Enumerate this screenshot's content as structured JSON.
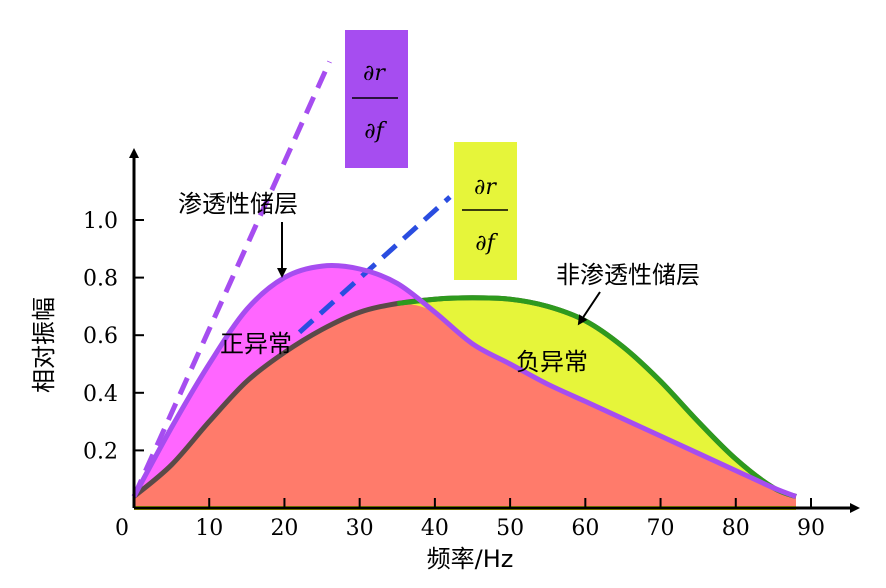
{
  "chart_data": {
    "type": "area",
    "xlabel": "频率/Hz",
    "ylabel": "相对振幅",
    "xlim": [
      0,
      90
    ],
    "ylim": [
      0,
      1.2
    ],
    "x_ticks": [
      "0",
      "10",
      "20",
      "30",
      "40",
      "50",
      "60",
      "70",
      "80",
      "90"
    ],
    "y_ticks": [
      "0.2",
      "0.4",
      "0.6",
      "0.8",
      "1.0"
    ],
    "series": [
      {
        "name": "渗透性储层",
        "color": "#a64df0",
        "fill": "#ff66ff",
        "x": [
          0,
          5,
          10,
          15,
          20,
          25,
          30,
          35,
          40,
          45,
          50,
          55,
          60,
          65,
          70,
          75,
          80,
          85,
          88
        ],
        "y": [
          0.04,
          0.28,
          0.5,
          0.69,
          0.8,
          0.84,
          0.83,
          0.78,
          0.68,
          0.57,
          0.5,
          0.43,
          0.37,
          0.31,
          0.25,
          0.19,
          0.13,
          0.07,
          0.04
        ]
      },
      {
        "name": "非渗透性储层",
        "color": "#2e9a1e",
        "fill": "#e6f53a",
        "x": [
          0,
          5,
          10,
          15,
          20,
          25,
          30,
          35,
          40,
          45,
          50,
          55,
          60,
          65,
          70,
          75,
          80,
          85,
          88
        ],
        "y": [
          0.04,
          0.15,
          0.3,
          0.44,
          0.54,
          0.62,
          0.68,
          0.71,
          0.725,
          0.73,
          0.725,
          0.7,
          0.65,
          0.56,
          0.44,
          0.3,
          0.17,
          0.07,
          0.04
        ]
      }
    ],
    "tangents": [
      {
        "color": "#a64df0",
        "from": [
          0,
          0.04
        ],
        "to": [
          26,
          1.55
        ]
      },
      {
        "color": "#2a4de0",
        "from": [
          22,
          0.61
        ],
        "to": [
          42,
          1.08
        ]
      }
    ],
    "annotations": {
      "positive": "正异常",
      "negative": "负异常",
      "permeable": "渗透性储层",
      "impermeable": "非渗透性储层"
    },
    "fraction_boxes": [
      {
        "numerator": "∂r",
        "denominator": "∂f",
        "color": "#a64df0"
      },
      {
        "numerator": "∂r",
        "denominator": "∂f",
        "color": "#e6f53a"
      }
    ],
    "overlap_color": "#ff7b6b",
    "baseline_color": "#d9d600"
  }
}
